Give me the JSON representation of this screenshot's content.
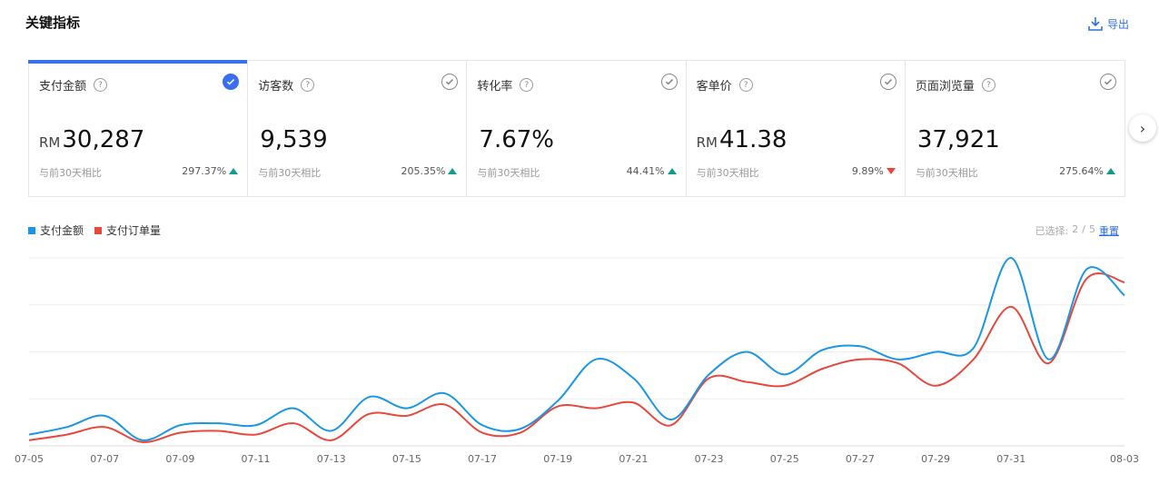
{
  "header": {
    "title": "关键指标",
    "export_label": "导出"
  },
  "metrics": [
    {
      "label": "支付金额",
      "unit": "RM",
      "value": "30,287",
      "compare_label": "与前30天相比",
      "delta": "297.37%",
      "trend": "up",
      "selected": true
    },
    {
      "label": "访客数",
      "unit": "",
      "value": "9,539",
      "compare_label": "与前30天相比",
      "delta": "205.35%",
      "trend": "up",
      "selected": false
    },
    {
      "label": "转化率",
      "unit": "",
      "value": "7.67%",
      "compare_label": "与前30天相比",
      "delta": "44.41%",
      "trend": "up",
      "selected": false
    },
    {
      "label": "客单价",
      "unit": "RM",
      "value": "41.38",
      "compare_label": "与前30天相比",
      "delta": "9.89%",
      "trend": "down",
      "selected": false
    },
    {
      "label": "页面浏览量",
      "unit": "",
      "value": "37,921",
      "compare_label": "与前30天相比",
      "delta": "275.64%",
      "trend": "up",
      "selected": false
    }
  ],
  "selection": {
    "label": "已选择:",
    "count": "2",
    "sep": "/",
    "total": "5",
    "reset_label": "重置"
  },
  "colors": {
    "accent": "#3a6ff0",
    "series1": "#1a96e6",
    "series2": "#e8473b",
    "up": "#0f9d8a",
    "down": "#e8473b"
  },
  "chart_data": {
    "type": "line",
    "x": [
      "07-05",
      "07-06",
      "07-07",
      "07-08",
      "07-09",
      "07-10",
      "07-11",
      "07-12",
      "07-13",
      "07-14",
      "07-15",
      "07-16",
      "07-17",
      "07-18",
      "07-19",
      "07-20",
      "07-21",
      "07-22",
      "07-23",
      "07-24",
      "07-25",
      "07-26",
      "07-27",
      "07-28",
      "07-29",
      "07-30",
      "07-31",
      "08-01",
      "08-02",
      "08-03"
    ],
    "tick_labels": [
      "07-05",
      "07-07",
      "07-09",
      "07-11",
      "07-13",
      "07-15",
      "07-17",
      "07-19",
      "07-21",
      "07-23",
      "07-25",
      "07-27",
      "07-29",
      "07-31",
      "08-03"
    ],
    "series": [
      {
        "name": "支付金额",
        "color": "#1a96e6",
        "values": [
          6,
          10,
          16,
          3,
          11,
          12,
          11,
          20,
          8,
          26,
          20,
          28,
          11,
          9,
          24,
          46,
          36,
          14,
          38,
          50,
          38,
          51,
          53,
          46,
          50,
          52,
          100,
          46,
          94,
          80
        ]
      },
      {
        "name": "支付订单量",
        "color": "#e8473b",
        "values": [
          3,
          6,
          10,
          2,
          7,
          8,
          6,
          12,
          3,
          17,
          16,
          22,
          7,
          7,
          21,
          20,
          23,
          11,
          36,
          34,
          32,
          41,
          46,
          44,
          32,
          46,
          74,
          44,
          89,
          87
        ]
      }
    ],
    "ylim": [
      0,
      100
    ],
    "grid": true,
    "legend": "top-left"
  }
}
